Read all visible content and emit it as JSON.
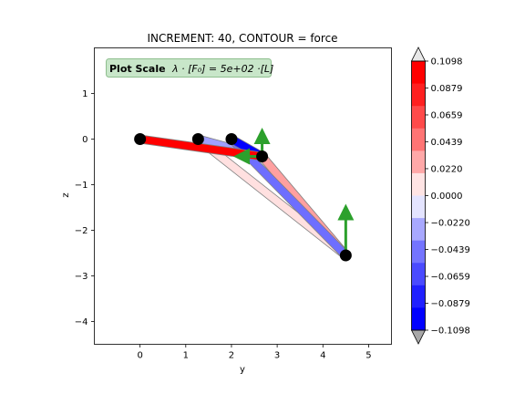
{
  "chart_data": {
    "type": "line",
    "title": "INCREMENT: 40, CONTOUR = force",
    "xlabel": "y",
    "ylabel": "z",
    "xlim": [
      -1.0,
      5.5
    ],
    "ylim": [
      -4.5,
      2.0
    ],
    "xticks": [
      0,
      1,
      2,
      3,
      4,
      5
    ],
    "yticks": [
      1,
      0,
      -1,
      -2,
      -3,
      -4
    ],
    "tick_labels_x": [
      "0",
      "1",
      "2",
      "3",
      "4",
      "5"
    ],
    "tick_labels_y": [
      "1",
      "0",
      "−1",
      "−2",
      "−3",
      "−4"
    ],
    "annotation": {
      "bold": "Plot Scale",
      "math": "λ · [F₀] =  5e+02 ·[L]",
      "box_color": "#c8e6c9",
      "border_color": "#8fbf8f"
    },
    "nodes": [
      {
        "y": 0.0,
        "z": 0.0
      },
      {
        "y": 1.27,
        "z": 0.0
      },
      {
        "y": 2.0,
        "z": 0.0
      },
      {
        "y": 2.67,
        "z": -0.38
      },
      {
        "y": 4.5,
        "z": -2.55
      }
    ],
    "members": [
      {
        "from": 0,
        "to": 3,
        "force": 0.1098,
        "color": "#ff0000",
        "band": [
          {
            "y": 0.0,
            "z": 0.0,
            "dy": 0.0,
            "dz": -0.05
          },
          {
            "y": 2.67,
            "z": -0.38,
            "dy": -0.05,
            "dz": -0.05
          }
        ]
      },
      {
        "from": 1,
        "to": 3,
        "force": -0.0439,
        "color": "#9f9fff"
      },
      {
        "from": 2,
        "to": 3,
        "force": -0.1098,
        "color": "#0000ff"
      },
      {
        "from": 2,
        "to": 4,
        "force": -0.0659,
        "color": "#6e6eff"
      },
      {
        "from": 3,
        "to": 4,
        "force": 0.0439,
        "color": "#ffa0a0"
      },
      {
        "from": 1,
        "to": 4,
        "force": 0.011,
        "color": "#ffe0e0"
      }
    ],
    "arrows": [
      {
        "at": 3,
        "dy": 0.0,
        "dz": 0.45
      },
      {
        "at": 3,
        "dy": -0.45,
        "dz": 0.0
      },
      {
        "at": 4,
        "dy": 0.0,
        "dz": 0.95
      }
    ],
    "arrow_color": "#2ca02c",
    "node_color": "#000000",
    "colorbar": {
      "min": -0.1098,
      "max": 0.1098,
      "tick_values": [
        0.1098,
        0.0879,
        0.0659,
        0.0439,
        0.022,
        0.0,
        -0.022,
        -0.0439,
        -0.0659,
        -0.0879,
        -0.1098
      ],
      "tick_labels": [
        "0.1098",
        "0.0879",
        "0.0659",
        "0.0439",
        "0.0220",
        "0.0000",
        "−0.0220",
        "−0.0439",
        "−0.0659",
        "−0.0879",
        "−0.1098"
      ],
      "colors_top_to_bottom": [
        "#ff0000",
        "#ff2020",
        "#ff4a4a",
        "#ff7474",
        "#ffa8a8",
        "#ffe4e4",
        "#e4e4ff",
        "#a8a8ff",
        "#7474ff",
        "#4a4aff",
        "#2020ff",
        "#0000ff"
      ],
      "extend_color": "#ffffff",
      "extend_top_color": "#e8e8e8",
      "extend_bottom_color": "#a8a8a8"
    }
  }
}
